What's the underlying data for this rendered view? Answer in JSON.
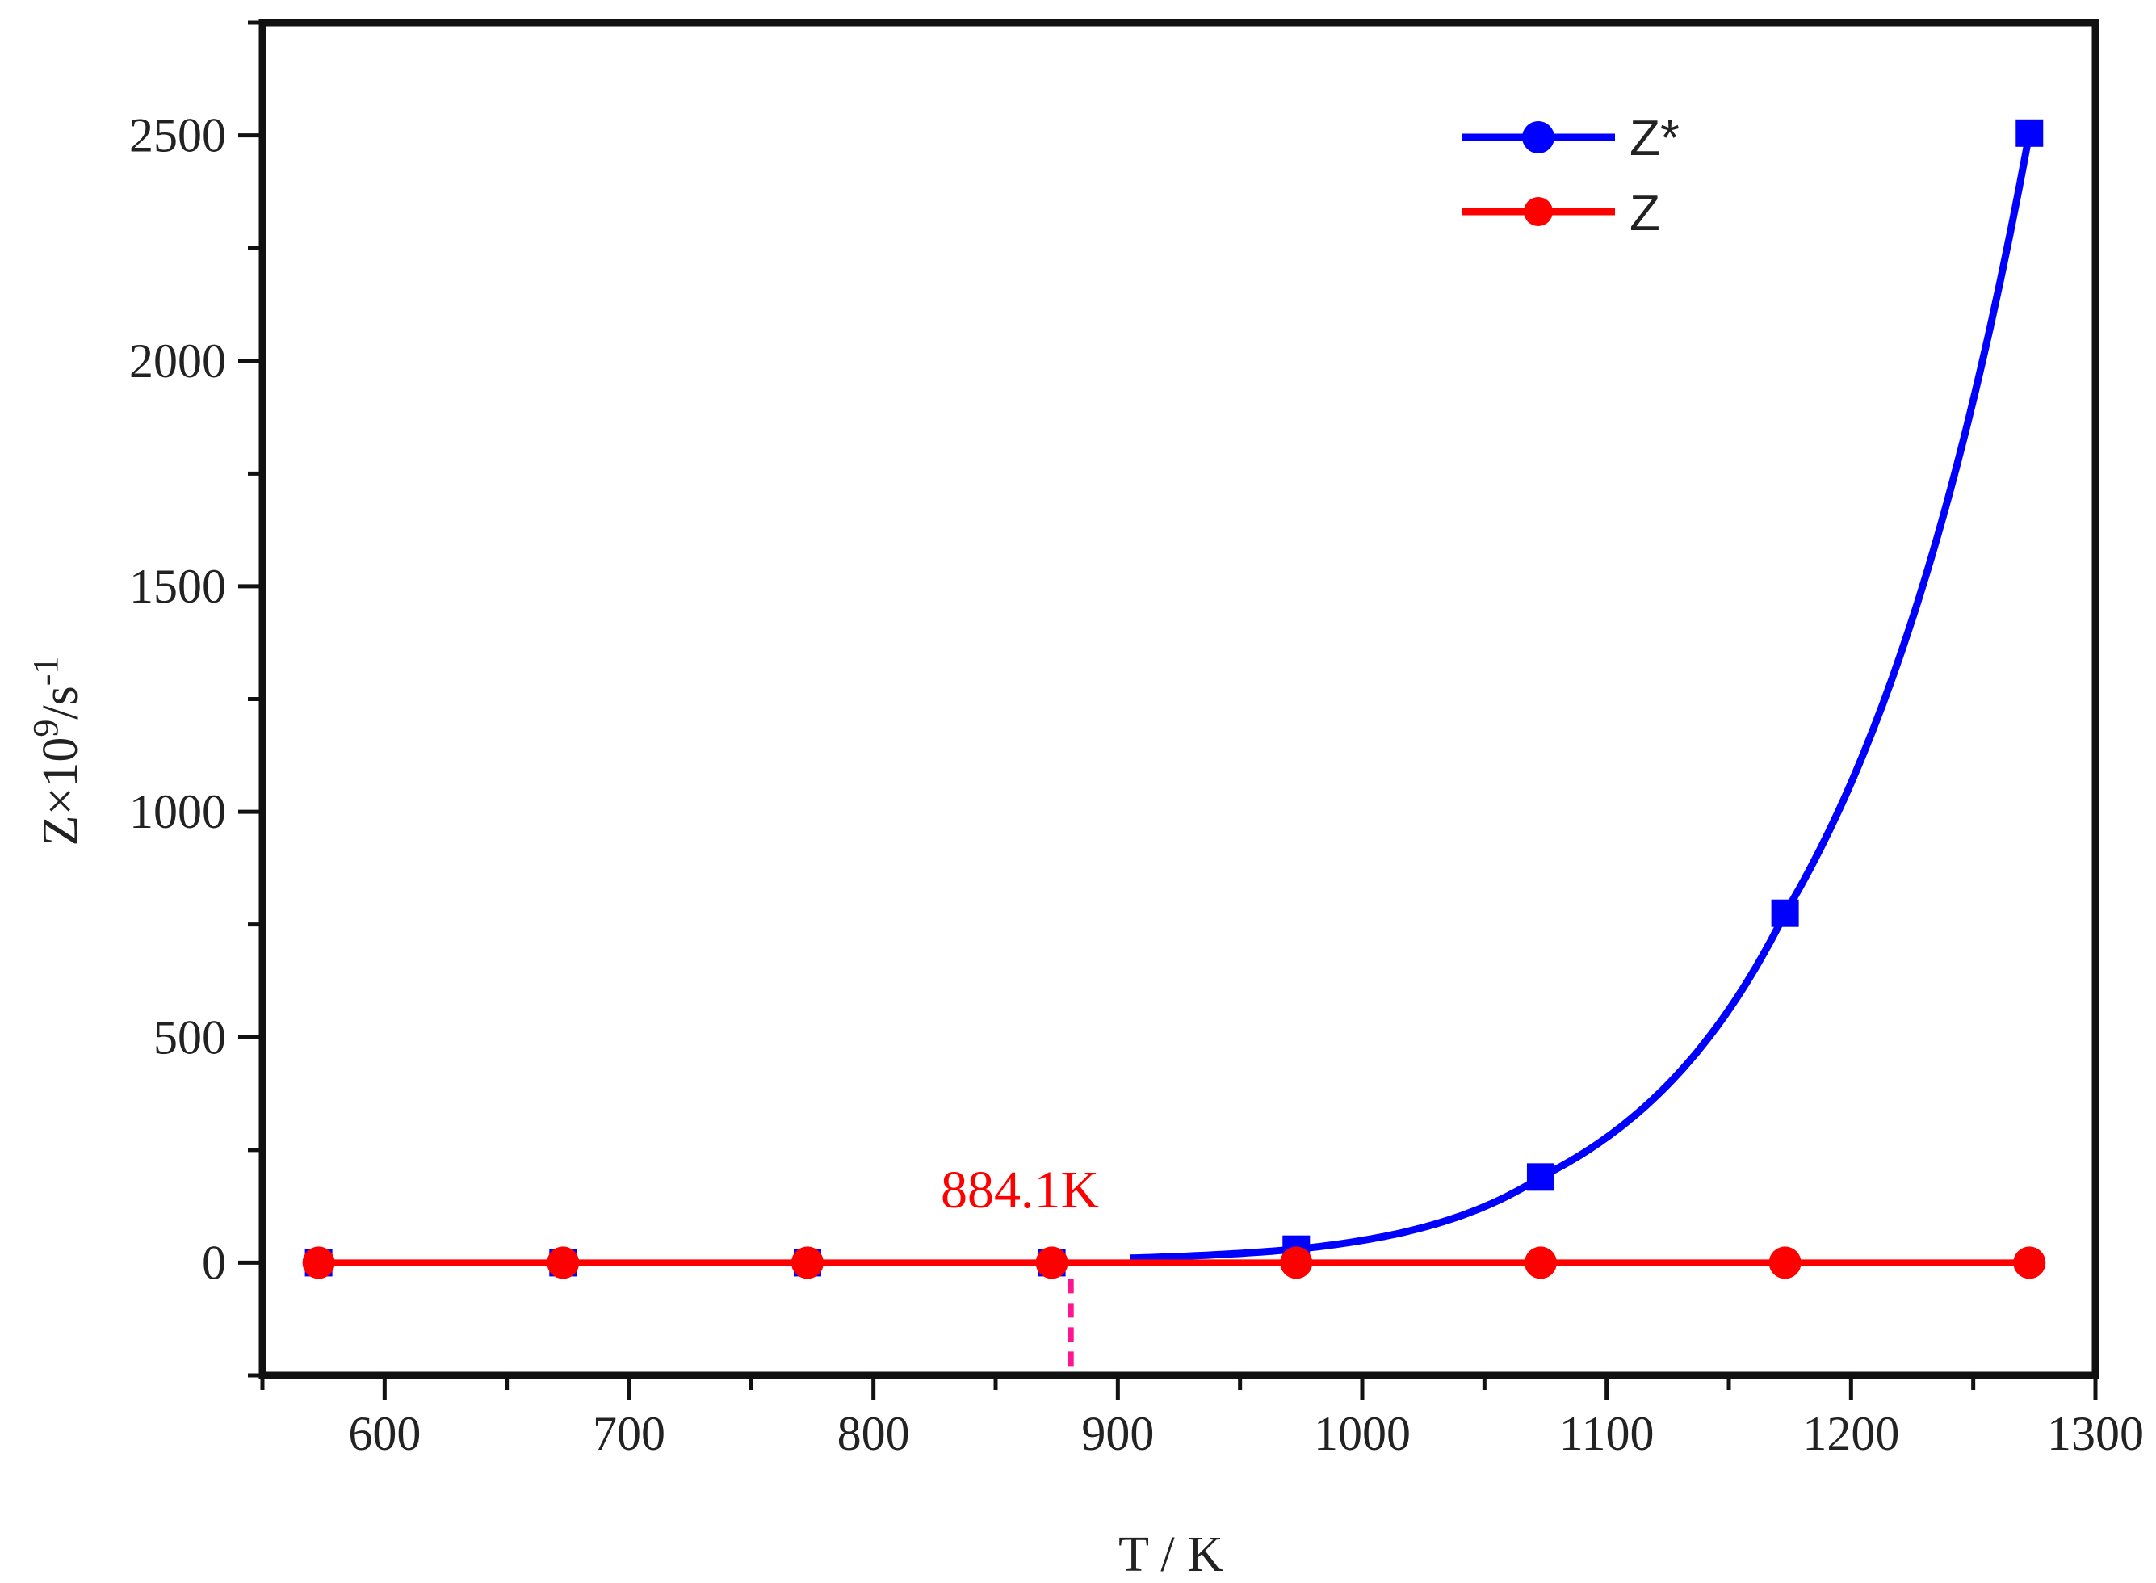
{
  "chart_data": {
    "type": "line",
    "title": "",
    "xlabel": "T / K",
    "ylabel_main": "Z×10",
    "ylabel_sup1": "9",
    "ylabel_mid": "/s",
    "ylabel_sup2": "-1",
    "xlim": [
      550,
      1300
    ],
    "ylim": [
      -250,
      2750
    ],
    "xticks": [
      600,
      700,
      800,
      900,
      1000,
      1100,
      1200,
      1300
    ],
    "yticks": [
      0,
      500,
      1000,
      1500,
      2000,
      2500
    ],
    "grid": false,
    "legend_position": "top-right",
    "x": [
      573,
      673,
      773,
      873,
      973,
      1073,
      1173,
      1273
    ],
    "series": [
      {
        "name": "Z*",
        "color": "#0000ff",
        "marker": "square",
        "values": [
          0,
          0,
          0,
          0,
          30,
          190,
          775,
          2505
        ],
        "curve_start_x": 905
      },
      {
        "name": "Z",
        "color": "#ff0000",
        "marker": "circle",
        "values": [
          0,
          0,
          0,
          0,
          0,
          0,
          0,
          0
        ]
      }
    ],
    "annotations": [
      {
        "text": "884.1K",
        "color": "#ff0000",
        "x": 884.1,
        "line_color": "#ff1493"
      }
    ]
  }
}
